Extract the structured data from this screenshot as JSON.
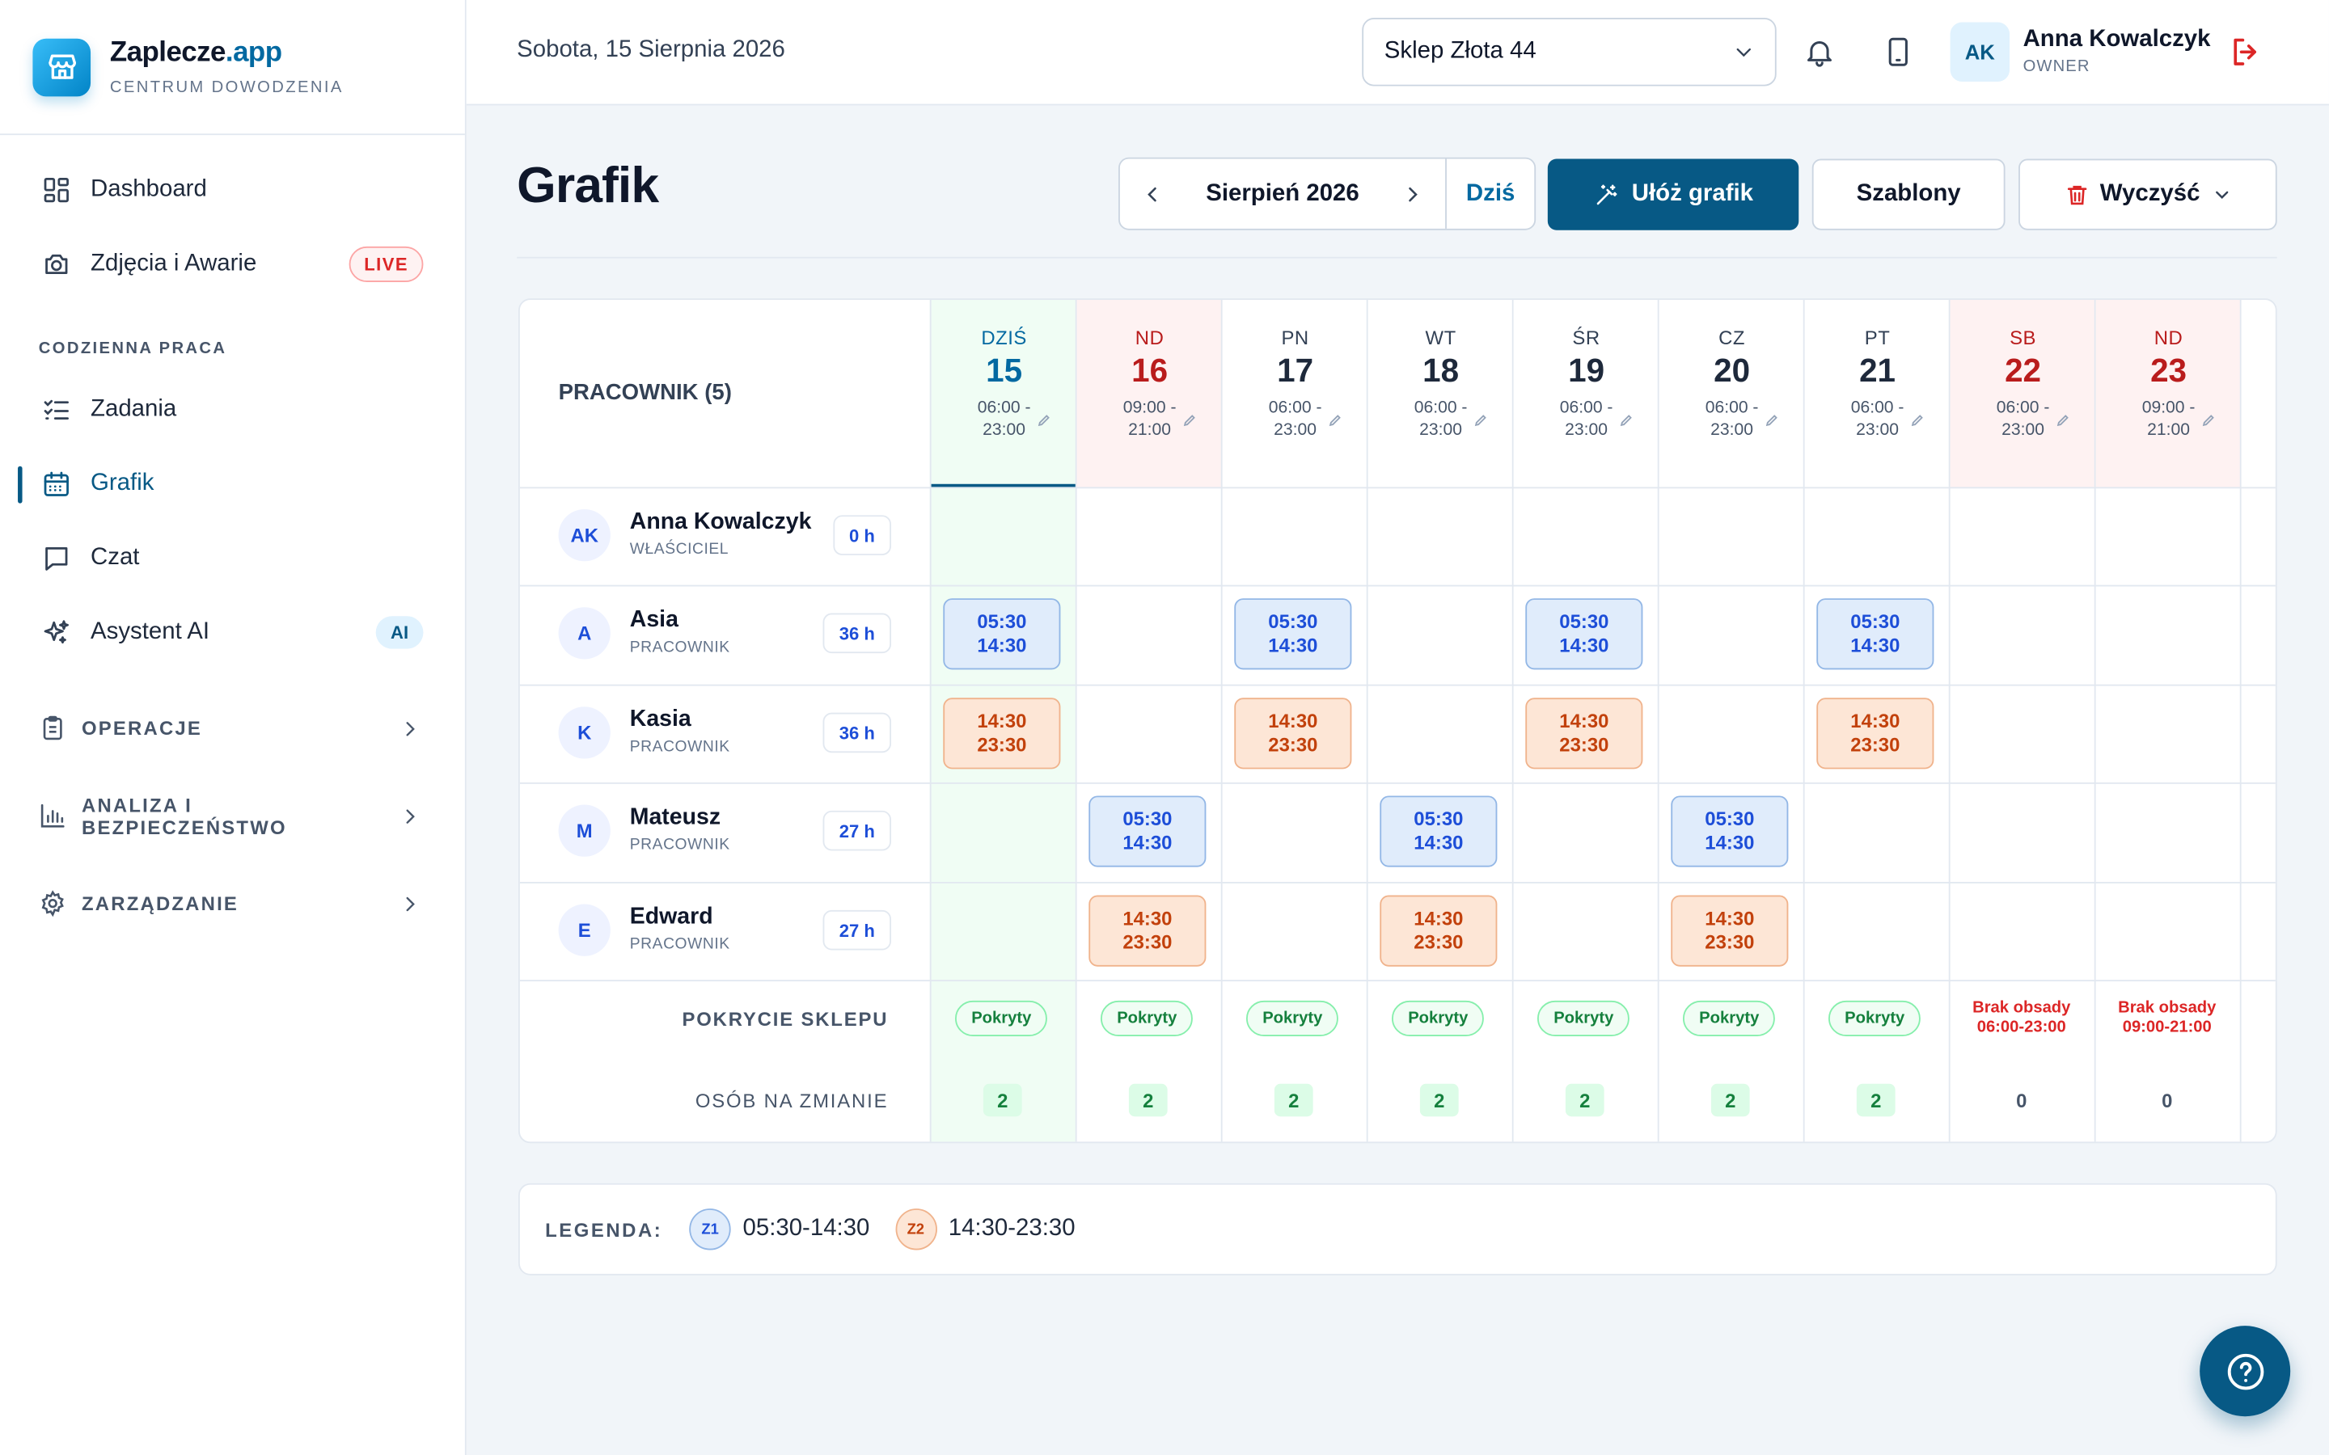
{
  "brand": {
    "name": "Zaplecze",
    "name_accent": ".app",
    "subtitle": "CENTRUM DOWODZENIA",
    "logo_icon": "store-icon"
  },
  "sidebar": {
    "primary": [
      {
        "label": "Dashboard",
        "icon": "dashboard-icon"
      },
      {
        "label": "Zdjęcia i Awarie",
        "icon": "camera-icon",
        "badge": "LIVE"
      }
    ],
    "section_label": "CODZIENNA PRACA",
    "daily": [
      {
        "label": "Zadania",
        "icon": "checklist-icon"
      },
      {
        "label": "Grafik",
        "icon": "calendar-icon",
        "active": true
      },
      {
        "label": "Czat",
        "icon": "chat-icon"
      },
      {
        "label": "Asystent AI",
        "icon": "sparkles-icon",
        "badge": "AI"
      }
    ],
    "groups": [
      {
        "label": "OPERACJE",
        "icon": "clipboard-icon"
      },
      {
        "label": "ANALIZA I BEZPIECZEŃSTWO",
        "icon": "bar-chart-icon"
      },
      {
        "label": "ZARZĄDZANIE",
        "icon": "gear-icon"
      }
    ]
  },
  "header": {
    "date": "Sobota, 15 Sierpnia 2026",
    "store": "Sklep Złota 44",
    "user": {
      "initials": "AK",
      "name": "Anna Kowalczyk",
      "role": "OWNER"
    }
  },
  "page": {
    "title": "Grafik",
    "month": "Sierpień 2026",
    "today_btn": "Dziś",
    "arrange_btn": "Ułóż grafik",
    "templates_btn": "Szablony",
    "clear_btn": "Wyczyść"
  },
  "schedule": {
    "employee_header": "PRACOWNIK (5)",
    "days": [
      {
        "name": "DZIŚ",
        "num": "15",
        "h1": "06:00 -",
        "h2": "23:00",
        "today": true
      },
      {
        "name": "ND",
        "num": "16",
        "h1": "09:00 -",
        "h2": "21:00",
        "weekend": true
      },
      {
        "name": "PN",
        "num": "17",
        "h1": "06:00 -",
        "h2": "23:00"
      },
      {
        "name": "WT",
        "num": "18",
        "h1": "06:00 -",
        "h2": "23:00"
      },
      {
        "name": "ŚR",
        "num": "19",
        "h1": "06:00 -",
        "h2": "23:00"
      },
      {
        "name": "CZ",
        "num": "20",
        "h1": "06:00 -",
        "h2": "23:00"
      },
      {
        "name": "PT",
        "num": "21",
        "h1": "06:00 -",
        "h2": "23:00"
      },
      {
        "name": "SB",
        "num": "22",
        "h1": "06:00 -",
        "h2": "23:00",
        "weekend": true
      },
      {
        "name": "ND",
        "num": "23",
        "h1": "09:00 -",
        "h2": "21:00",
        "weekend": true
      }
    ],
    "employees": [
      {
        "initials": "AK",
        "name": "Anna Kowalczyk",
        "role": "WŁAŚCICIEL",
        "hours": "0 h",
        "shifts": []
      },
      {
        "initials": "A",
        "name": "Asia",
        "role": "PRACOWNIK",
        "hours": "36 h",
        "shifts": [
          {
            "day": 0,
            "type": "z1",
            "start": "05:30",
            "end": "14:30"
          },
          {
            "day": 2,
            "type": "z1",
            "start": "05:30",
            "end": "14:30"
          },
          {
            "day": 4,
            "type": "z1",
            "start": "05:30",
            "end": "14:30"
          },
          {
            "day": 6,
            "type": "z1",
            "start": "05:30",
            "end": "14:30"
          }
        ]
      },
      {
        "initials": "K",
        "name": "Kasia",
        "role": "PRACOWNIK",
        "hours": "36 h",
        "shifts": [
          {
            "day": 0,
            "type": "z2",
            "start": "14:30",
            "end": "23:30"
          },
          {
            "day": 2,
            "type": "z2",
            "start": "14:30",
            "end": "23:30"
          },
          {
            "day": 4,
            "type": "z2",
            "start": "14:30",
            "end": "23:30"
          },
          {
            "day": 6,
            "type": "z2",
            "start": "14:30",
            "end": "23:30"
          }
        ]
      },
      {
        "initials": "M",
        "name": "Mateusz",
        "role": "PRACOWNIK",
        "hours": "27 h",
        "shifts": [
          {
            "day": 1,
            "type": "z1",
            "start": "05:30",
            "end": "14:30"
          },
          {
            "day": 3,
            "type": "z1",
            "start": "05:30",
            "end": "14:30"
          },
          {
            "day": 5,
            "type": "z1",
            "start": "05:30",
            "end": "14:30"
          }
        ]
      },
      {
        "initials": "E",
        "name": "Edward",
        "role": "PRACOWNIK",
        "hours": "27 h",
        "shifts": [
          {
            "day": 1,
            "type": "z2",
            "start": "14:30",
            "end": "23:30"
          },
          {
            "day": 3,
            "type": "z2",
            "start": "14:30",
            "end": "23:30"
          },
          {
            "day": 5,
            "type": "z2",
            "start": "14:30",
            "end": "23:30"
          }
        ]
      }
    ],
    "coverage_label": "POKRYCIE SKLEPU",
    "coverage": [
      {
        "status": "ok",
        "text": "Pokryty"
      },
      {
        "status": "ok",
        "text": "Pokryty"
      },
      {
        "status": "ok",
        "text": "Pokryty"
      },
      {
        "status": "ok",
        "text": "Pokryty"
      },
      {
        "status": "ok",
        "text": "Pokryty"
      },
      {
        "status": "ok",
        "text": "Pokryty"
      },
      {
        "status": "ok",
        "text": "Pokryty"
      },
      {
        "status": "missing",
        "text": "Brak obsady",
        "range": "06:00-23:00"
      },
      {
        "status": "missing",
        "text": "Brak obsady",
        "range": "09:00-21:00"
      }
    ],
    "staff_label": "OSÓB NA ZMIANIE",
    "staff_counts": [
      "2",
      "2",
      "2",
      "2",
      "2",
      "2",
      "2",
      "0",
      "0"
    ]
  },
  "legend": {
    "title": "LEGENDA:",
    "items": [
      {
        "code": "Z1",
        "range": "05:30-14:30",
        "type": "z1"
      },
      {
        "code": "Z2",
        "range": "14:30-23:30",
        "type": "z2"
      }
    ]
  },
  "colors": {
    "primary": "#075985",
    "accent": "#0369a1",
    "danger": "#dc2626",
    "success": "#15803d"
  }
}
